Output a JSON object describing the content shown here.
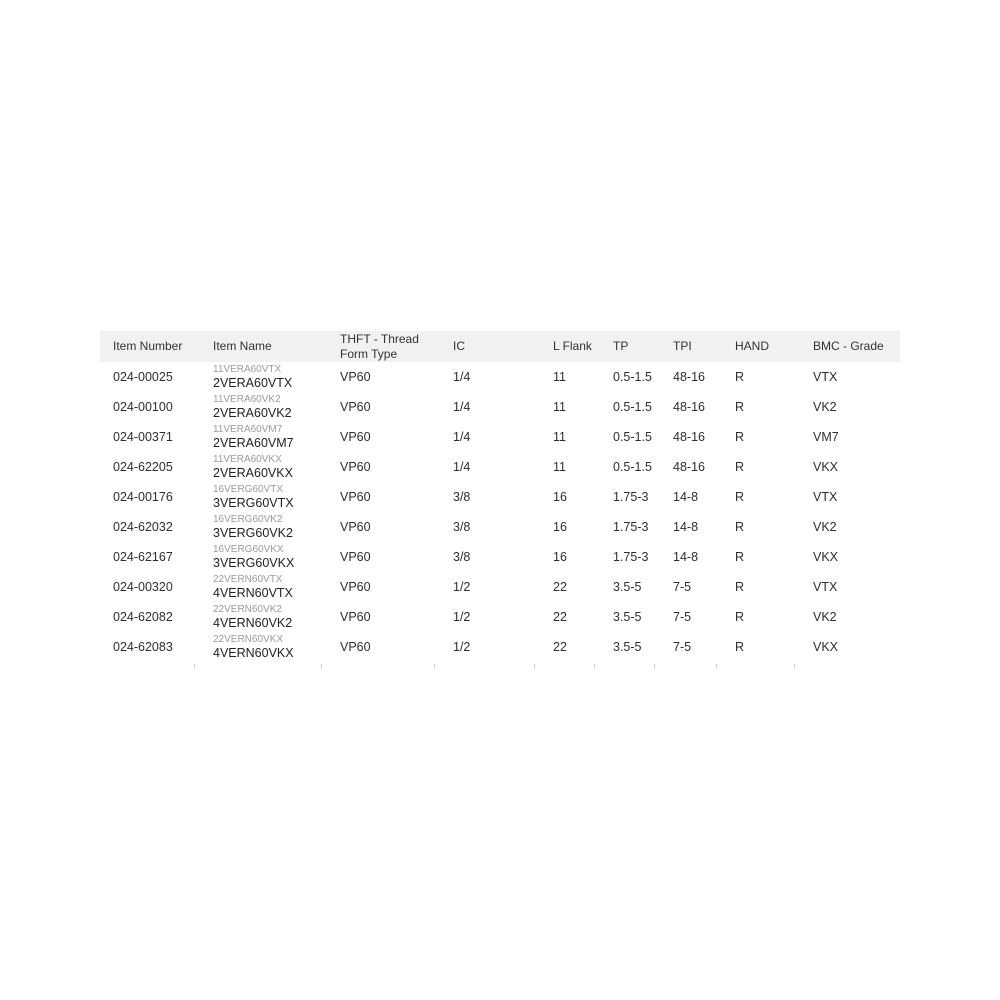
{
  "colors": {
    "header_bg": "#f0f1f3",
    "header_text": "#333333",
    "cell_text": "#2e2e2e",
    "item_name_secondary": "#9b9b9b",
    "item_name_primary": "#222222",
    "tick": "#d4d4d4"
  },
  "table": {
    "columns": [
      {
        "key": "item_number",
        "label": "Item Number",
        "width": 100
      },
      {
        "key": "item_name",
        "label": "Item Name",
        "width": 127
      },
      {
        "key": "thft",
        "label": "THFT - Thread Form Type",
        "width": 113
      },
      {
        "key": "ic",
        "label": "IC",
        "width": 100
      },
      {
        "key": "l_flank",
        "label": "L Flank",
        "width": 60
      },
      {
        "key": "tp",
        "label": "TP",
        "width": 60
      },
      {
        "key": "tpi",
        "label": "TPI",
        "width": 62
      },
      {
        "key": "hand",
        "label": "HAND",
        "width": 78
      },
      {
        "key": "bmc_grade",
        "label": "BMC - Grade",
        "width": 100
      }
    ],
    "rows": [
      {
        "item_number": "024-00025",
        "item_name_alt": "11VERA60VTX",
        "item_name": "2VERA60VTX",
        "thft": "VP60",
        "ic": "1/4",
        "l_flank": "11",
        "tp": "0.5-1.5",
        "tpi": "48-16",
        "hand": "R",
        "bmc_grade": "VTX"
      },
      {
        "item_number": "024-00100",
        "item_name_alt": "11VERA60VK2",
        "item_name": "2VERA60VK2",
        "thft": "VP60",
        "ic": "1/4",
        "l_flank": "11",
        "tp": "0.5-1.5",
        "tpi": "48-16",
        "hand": "R",
        "bmc_grade": "VK2"
      },
      {
        "item_number": "024-00371",
        "item_name_alt": "11VERA60VM7",
        "item_name": "2VERA60VM7",
        "thft": "VP60",
        "ic": "1/4",
        "l_flank": "11",
        "tp": "0.5-1.5",
        "tpi": "48-16",
        "hand": "R",
        "bmc_grade": "VM7"
      },
      {
        "item_number": "024-62205",
        "item_name_alt": "11VERA60VKX",
        "item_name": "2VERA60VKX",
        "thft": "VP60",
        "ic": "1/4",
        "l_flank": "11",
        "tp": "0.5-1.5",
        "tpi": "48-16",
        "hand": "R",
        "bmc_grade": "VKX"
      },
      {
        "item_number": "024-00176",
        "item_name_alt": "16VERG60VTX",
        "item_name": "3VERG60VTX",
        "thft": "VP60",
        "ic": "3/8",
        "l_flank": "16",
        "tp": "1.75-3",
        "tpi": "14-8",
        "hand": "R",
        "bmc_grade": "VTX"
      },
      {
        "item_number": "024-62032",
        "item_name_alt": "16VERG60VK2",
        "item_name": "3VERG60VK2",
        "thft": "VP60",
        "ic": "3/8",
        "l_flank": "16",
        "tp": "1.75-3",
        "tpi": "14-8",
        "hand": "R",
        "bmc_grade": "VK2"
      },
      {
        "item_number": "024-62167",
        "item_name_alt": "16VERG60VKX",
        "item_name": "3VERG60VKX",
        "thft": "VP60",
        "ic": "3/8",
        "l_flank": "16",
        "tp": "1.75-3",
        "tpi": "14-8",
        "hand": "R",
        "bmc_grade": "VKX"
      },
      {
        "item_number": "024-00320",
        "item_name_alt": "22VERN60VTX",
        "item_name": "4VERN60VTX",
        "thft": "VP60",
        "ic": "1/2",
        "l_flank": "22",
        "tp": "3.5-5",
        "tpi": "7-5",
        "hand": "R",
        "bmc_grade": "VTX"
      },
      {
        "item_number": "024-62082",
        "item_name_alt": "22VERN60VK2",
        "item_name": "4VERN60VK2",
        "thft": "VP60",
        "ic": "1/2",
        "l_flank": "22",
        "tp": "3.5-5",
        "tpi": "7-5",
        "hand": "R",
        "bmc_grade": "VK2"
      },
      {
        "item_number": "024-62083",
        "item_name_alt": "22VERN60VKX",
        "item_name": "4VERN60VKX",
        "thft": "VP60",
        "ic": "1/2",
        "l_flank": "22",
        "tp": "3.5-5",
        "tpi": "7-5",
        "hand": "R",
        "bmc_grade": "VKX"
      }
    ]
  }
}
